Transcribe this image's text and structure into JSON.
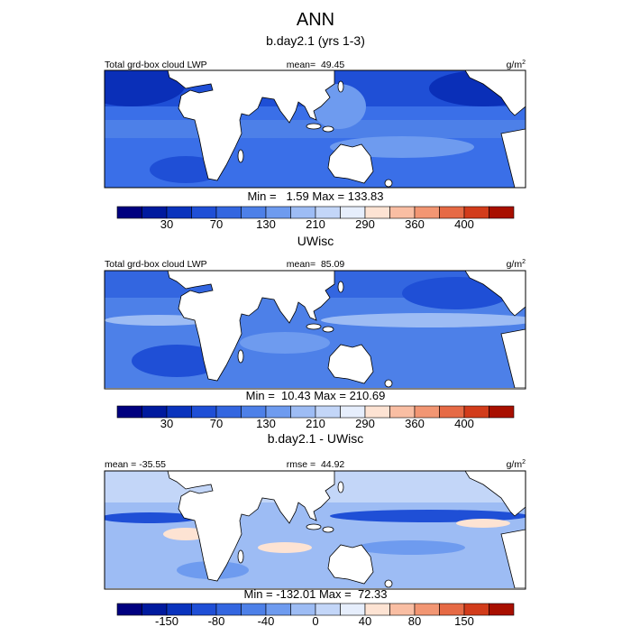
{
  "title": "ANN",
  "panels": [
    {
      "title": "b.day2.1 (yrs 1-3)",
      "left_label": "Total grd-box cloud LWP",
      "center_label": "mean=  49.45",
      "units": "g/m",
      "units_sup": "2",
      "min_max": "Min =   1.59 Max = 133.83",
      "colorbar": {
        "labels": [
          "30",
          "70",
          "130",
          "210",
          "290",
          "360",
          "400"
        ]
      }
    },
    {
      "title": "UWisc",
      "left_label": "Total grd-box cloud LWP",
      "center_label": "mean=  85.09",
      "units": "g/m",
      "units_sup": "2",
      "min_max": "Min =  10.43 Max = 210.69",
      "colorbar": {
        "labels": [
          "30",
          "70",
          "130",
          "210",
          "290",
          "360",
          "400"
        ]
      }
    },
    {
      "title": "b.day2.1 - UWisc",
      "left_label": "mean = -35.55",
      "center_label": "rmse =  44.92",
      "units": "g/m",
      "units_sup": "2",
      "min_max": "Min = -132.01 Max =  72.33",
      "colorbar": {
        "labels": [
          "-150",
          "-80",
          "-40",
          "0",
          "40",
          "80",
          "150"
        ]
      }
    }
  ],
  "colorbar_colors": [
    "#00007f",
    "#001a9e",
    "#0a33bd",
    "#1f4fd6",
    "#3366e0",
    "#4d80e8",
    "#6e9bef",
    "#9dbcf4",
    "#c3d6f8",
    "#e6eefc",
    "#fde3d3",
    "#f9bea3",
    "#f29673",
    "#e66a45",
    "#d23c1b",
    "#a80f00"
  ]
}
